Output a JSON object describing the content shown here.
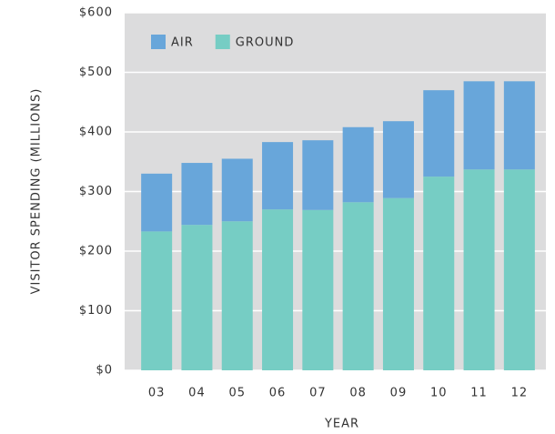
{
  "chart_data": {
    "type": "stacked_bar",
    "x_label": "YEAR",
    "y_label": "VISITOR SPENDING (MILLIONS)",
    "categories": [
      "03",
      "04",
      "05",
      "06",
      "07",
      "08",
      "09",
      "10",
      "11",
      "12"
    ],
    "series": [
      {
        "name": "AIR",
        "color": "#68a6da",
        "values": [
          97,
          104,
          105,
          113,
          117,
          126,
          129,
          145,
          148,
          148
        ]
      },
      {
        "name": "GROUND",
        "color": "#76cdc4",
        "values": [
          233,
          244,
          250,
          270,
          269,
          282,
          289,
          325,
          337,
          337
        ]
      }
    ],
    "stack_order": [
      "GROUND",
      "AIR"
    ],
    "ylim": [
      0,
      600
    ],
    "yticks": [
      {
        "value": 0,
        "label": "$0"
      },
      {
        "value": 100,
        "label": "$100"
      },
      {
        "value": 200,
        "label": "$200"
      },
      {
        "value": 300,
        "label": "$300"
      },
      {
        "value": 400,
        "label": "$400"
      },
      {
        "value": 500,
        "label": "$500"
      },
      {
        "value": 600,
        "label": "$600"
      }
    ],
    "grid": true,
    "legend": "top-left"
  }
}
